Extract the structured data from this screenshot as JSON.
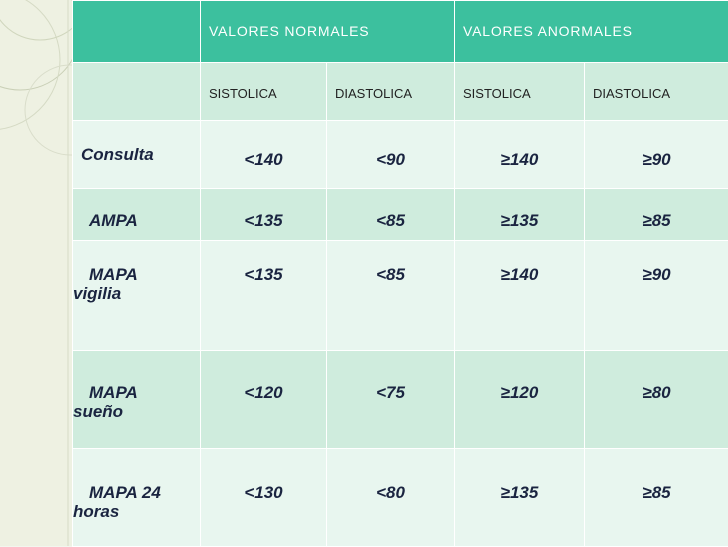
{
  "header": {
    "normal_label": "VALORES NORMALES",
    "abnormal_label": "VALORES ANORMALES"
  },
  "subheader": [
    "SISTOLICA",
    "DIASTOLICA",
    "SISTOLICA",
    "DIASTOLICA"
  ],
  "rows": [
    {
      "label_line1": "Consulta",
      "label_line2": "",
      "values": [
        "<140",
        "<90",
        "≥140",
        "≥90"
      ]
    },
    {
      "label_line1": "AMPA",
      "label_line2": "",
      "values": [
        "<135",
        "<85",
        "≥135",
        "≥85"
      ]
    },
    {
      "label_line1": "MAPA",
      "label_line2": "vigilia",
      "values": [
        "<135",
        "<85",
        "≥140",
        "≥90"
      ]
    },
    {
      "label_line1": "MAPA",
      "label_line2": "sueño",
      "values": [
        "<120",
        "<75",
        "≥120",
        "≥80"
      ]
    },
    {
      "label_line1": "MAPA 24",
      "label_line2": "horas",
      "values": [
        "<130",
        "<80",
        "≥135",
        "≥85"
      ]
    }
  ]
}
